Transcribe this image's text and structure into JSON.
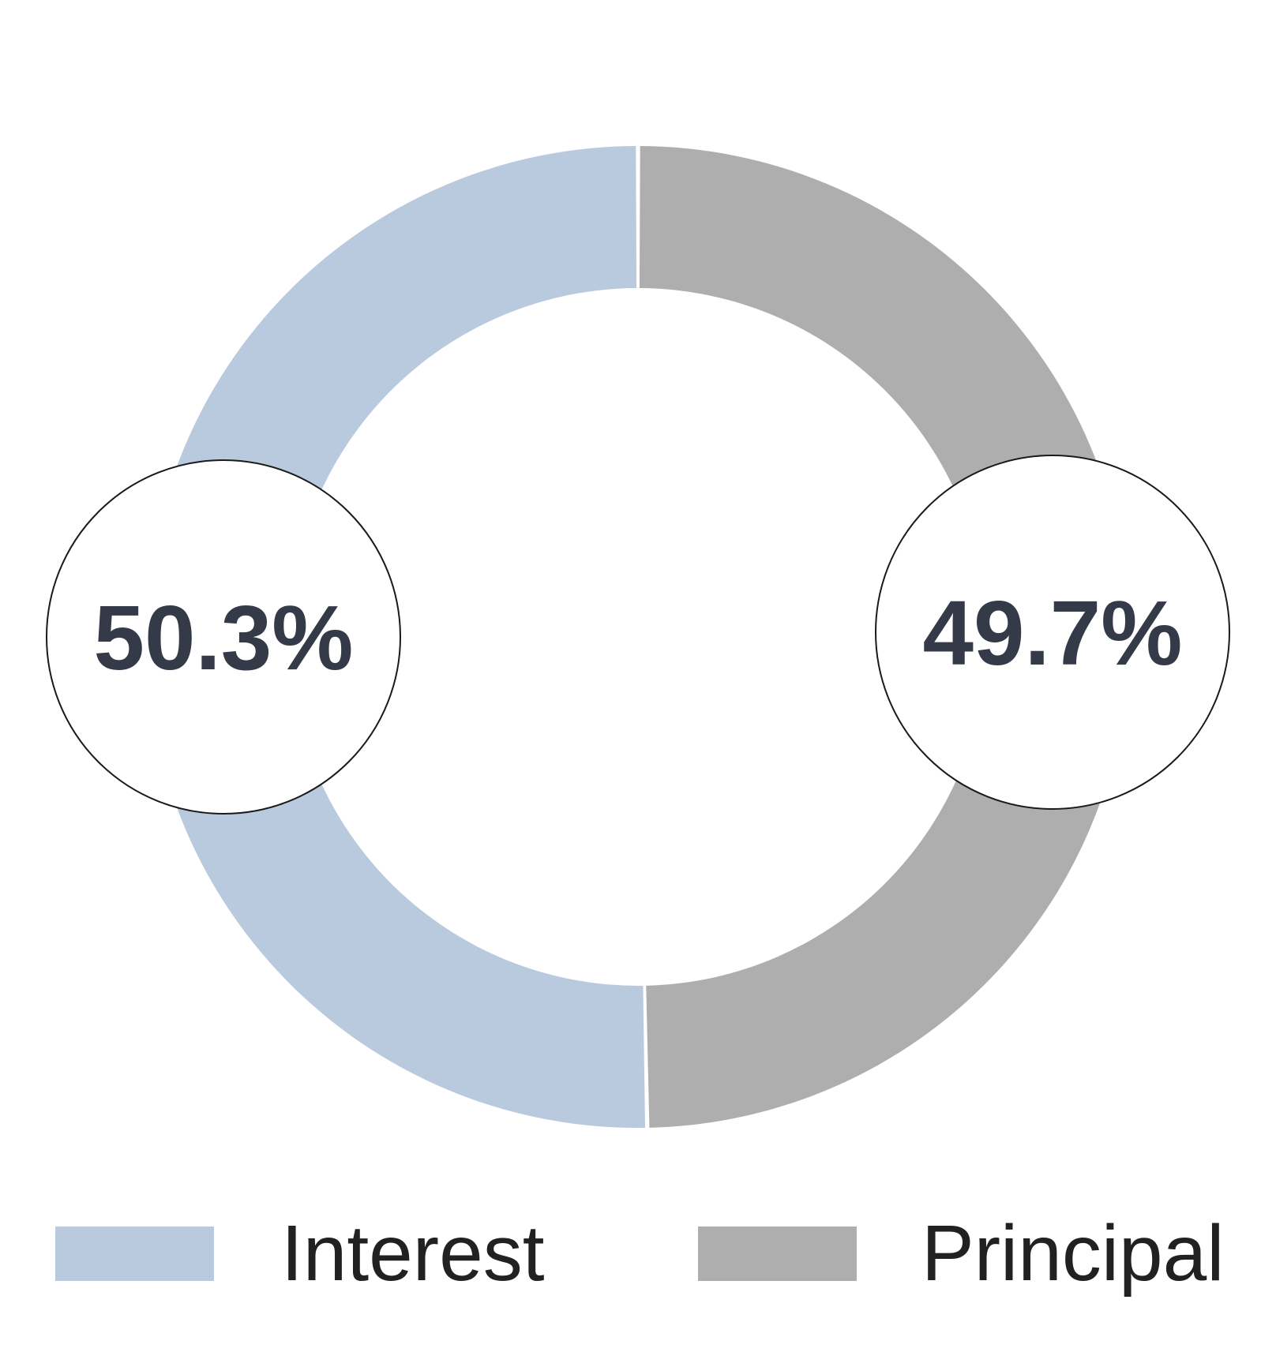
{
  "chart_data": {
    "type": "pie",
    "subtype": "donut",
    "title": "",
    "categories": [
      "Interest",
      "Principal"
    ],
    "values": [
      50.3,
      49.7
    ],
    "slice_labels": [
      "50.3%",
      "49.7%"
    ],
    "colors": [
      "#b9c9de",
      "#aeaeae"
    ],
    "hole_ratio": 0.71,
    "start_angle_deg": 90,
    "direction": "counterclockwise",
    "legend_position": "bottom",
    "label_style": {
      "text_color": "#343a47",
      "callout_fill": "#ffffff",
      "callout_border": "#1a1a1a"
    }
  },
  "legend": {
    "items": [
      {
        "label": "Interest",
        "color": "#b9c9de"
      },
      {
        "label": "Principal",
        "color": "#aeaeae"
      }
    ]
  }
}
